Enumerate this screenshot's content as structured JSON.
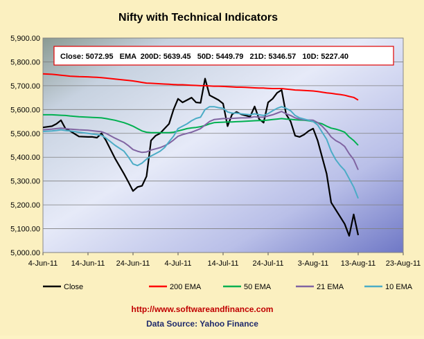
{
  "chart_data": {
    "type": "line",
    "title": "Nifty with Technical Indicators",
    "info_box": "Close: 5072.95   EMA  200D: 5639.45   50D: 5449.79   21D: 5346.57   10D: 5227.40",
    "x_ticks": [
      "4-Jun-11",
      "14-Jun-11",
      "24-Jun-11",
      "4-Jul-11",
      "14-Jul-11",
      "24-Jul-11",
      "3-Aug-11",
      "13-Aug-11",
      "23-Aug-11"
    ],
    "x_range_days": [
      0,
      80
    ],
    "y_ticks": [
      "5,000.00",
      "5,100.00",
      "5,200.00",
      "5,300.00",
      "5,400.00",
      "5,500.00",
      "5,600.00",
      "5,700.00",
      "5,800.00",
      "5,900.00"
    ],
    "ylim": [
      5000,
      5900
    ],
    "grid": true,
    "legend_position": "bottom",
    "x": [
      0,
      2,
      3,
      4,
      5,
      6,
      8,
      10,
      11,
      12,
      13,
      14,
      16,
      18,
      19,
      20,
      21,
      22,
      23,
      24,
      25,
      26,
      27,
      28,
      29,
      30,
      31,
      32,
      33,
      34,
      35,
      36,
      37,
      38,
      39,
      40,
      41,
      42,
      43,
      44,
      45,
      46,
      47,
      48,
      49,
      50,
      51,
      52,
      53,
      54,
      55,
      56,
      57,
      58,
      59,
      60,
      61,
      62,
      63,
      64,
      65,
      66,
      67,
      68,
      69,
      70
    ],
    "series": [
      {
        "name": "Close",
        "color": "#000000",
        "values": [
          5525,
          5530,
          5540,
          5555,
          5520,
          5510,
          5487,
          5485,
          5485,
          5482,
          5500,
          5470,
          5395,
          5330,
          5295,
          5258,
          5275,
          5280,
          5320,
          5470,
          5490,
          5500,
          5520,
          5540,
          5600,
          5645,
          5630,
          5640,
          5650,
          5630,
          5628,
          5730,
          5660,
          5650,
          5640,
          5625,
          5530,
          5580,
          5590,
          5580,
          5575,
          5570,
          5613,
          5560,
          5545,
          5630,
          5645,
          5670,
          5682,
          5580,
          5550,
          5490,
          5485,
          5495,
          5510,
          5520,
          5470,
          5400,
          5330,
          5210,
          5180,
          5150,
          5120,
          5070,
          5160,
          5073
        ]
      },
      {
        "name": "200 EMA",
        "color": "#ff0000",
        "values": [
          5750,
          5748,
          5746,
          5744,
          5742,
          5740,
          5738,
          5737,
          5736,
          5735,
          5734,
          5732,
          5728,
          5724,
          5722,
          5720,
          5717,
          5714,
          5711,
          5710,
          5709,
          5708,
          5707,
          5706,
          5705,
          5704,
          5704,
          5703,
          5702,
          5701,
          5700,
          5700,
          5699,
          5698,
          5698,
          5697,
          5696,
          5695,
          5694,
          5694,
          5693,
          5692,
          5691,
          5690,
          5690,
          5689,
          5688,
          5688,
          5688,
          5686,
          5684,
          5682,
          5681,
          5680,
          5679,
          5678,
          5676,
          5673,
          5670,
          5668,
          5665,
          5663,
          5660,
          5655,
          5651,
          5640
        ]
      },
      {
        "name": "50 EMA",
        "color": "#00b050",
        "values": [
          5578,
          5578,
          5577,
          5576,
          5575,
          5573,
          5570,
          5568,
          5567,
          5566,
          5565,
          5562,
          5555,
          5545,
          5538,
          5530,
          5520,
          5510,
          5505,
          5503,
          5503,
          5503,
          5503,
          5503,
          5505,
          5510,
          5515,
          5520,
          5523,
          5525,
          5528,
          5533,
          5540,
          5545,
          5546,
          5547,
          5548,
          5548,
          5549,
          5550,
          5551,
          5552,
          5553,
          5554,
          5554,
          5556,
          5558,
          5560,
          5562,
          5560,
          5559,
          5557,
          5556,
          5555,
          5553,
          5550,
          5545,
          5540,
          5530,
          5522,
          5518,
          5512,
          5505,
          5485,
          5470,
          5450
        ]
      },
      {
        "name": "21 EMA",
        "color": "#8064a2",
        "values": [
          5515,
          5518,
          5520,
          5522,
          5520,
          5518,
          5515,
          5513,
          5511,
          5509,
          5507,
          5500,
          5480,
          5462,
          5448,
          5432,
          5425,
          5420,
          5422,
          5430,
          5435,
          5440,
          5448,
          5458,
          5472,
          5488,
          5495,
          5500,
          5505,
          5512,
          5520,
          5535,
          5550,
          5558,
          5560,
          5562,
          5562,
          5563,
          5564,
          5565,
          5565,
          5566,
          5570,
          5568,
          5568,
          5573,
          5578,
          5585,
          5592,
          5582,
          5575,
          5565,
          5560,
          5557,
          5556,
          5555,
          5545,
          5530,
          5510,
          5485,
          5470,
          5460,
          5445,
          5415,
          5390,
          5347
        ]
      },
      {
        "name": "10 EMA",
        "color": "#4bacc6",
        "values": [
          5508,
          5510,
          5512,
          5515,
          5512,
          5510,
          5505,
          5500,
          5497,
          5495,
          5492,
          5480,
          5450,
          5425,
          5400,
          5372,
          5365,
          5375,
          5392,
          5405,
          5415,
          5425,
          5440,
          5465,
          5488,
          5520,
          5530,
          5540,
          5553,
          5563,
          5568,
          5600,
          5612,
          5612,
          5608,
          5605,
          5590,
          5585,
          5585,
          5582,
          5580,
          5578,
          5582,
          5578,
          5575,
          5583,
          5595,
          5605,
          5612,
          5605,
          5595,
          5575,
          5565,
          5560,
          5555,
          5550,
          5535,
          5505,
          5475,
          5425,
          5390,
          5365,
          5345,
          5310,
          5275,
          5227
        ]
      }
    ]
  },
  "footer": {
    "url": "http://www.softwareandfinance.com",
    "source": "Data Source: Yahoo Finance"
  }
}
